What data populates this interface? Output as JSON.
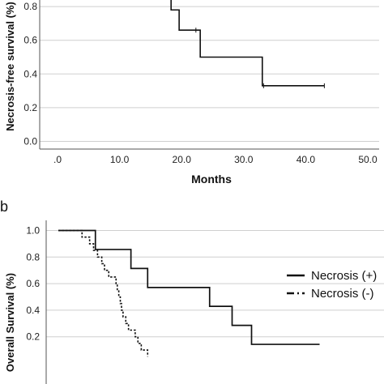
{
  "chart_data": [
    {
      "type": "line",
      "panel_label": "",
      "xlabel": "Months",
      "ylabel": "Necrosis-free survival (%)",
      "xlim": [
        0,
        50
      ],
      "ylim": [
        0,
        1.0
      ],
      "x_ticks": [
        ".0",
        "10.0",
        "20.0",
        "30.0",
        "40.0",
        "50.0"
      ],
      "y_ticks": [
        "0.0",
        "0.2",
        "0.4",
        "0.6",
        "0.8"
      ],
      "grid": "horizontal",
      "series": [
        {
          "style": "solid",
          "steps": [
            [
              0,
              1.0
            ],
            [
              18.3,
              0.78
            ],
            [
              19.6,
              0.66
            ],
            [
              23.0,
              0.5
            ],
            [
              33.0,
              0.33
            ],
            [
              43.0,
              0.33
            ]
          ],
          "censored": [
            [
              22.3,
              0.66
            ],
            [
              33.2,
              0.33
            ],
            [
              43.0,
              0.33
            ]
          ]
        }
      ]
    },
    {
      "type": "line",
      "panel_label": "b",
      "xlabel": "",
      "ylabel": "Overall Survival (%)",
      "xlim": [
        0,
        50
      ],
      "ylim": [
        0,
        1.0
      ],
      "y_ticks": [
        "1.0",
        "0.8",
        "0.6",
        "0.4",
        "0.2"
      ],
      "grid": "horizontal",
      "legend_position": "right",
      "series": [
        {
          "name": "Necrosis (+)",
          "style": "solid",
          "steps": [
            [
              0,
              1.0
            ],
            [
              12.2,
              0.857
            ],
            [
              23.9,
              0.714
            ],
            [
              29.4,
              0.571
            ],
            [
              49.8,
              0.429
            ],
            [
              57.2,
              0.286
            ],
            [
              63.6,
              0.143
            ],
            [
              86.0,
              0.143
            ]
          ]
        },
        {
          "name": "Necrosis (-)",
          "style": "dotted",
          "steps": [
            [
              0,
              1.0
            ],
            [
              7.8,
              0.95
            ],
            [
              10.3,
              0.9
            ],
            [
              11.6,
              0.85
            ],
            [
              12.9,
              0.8
            ],
            [
              14.3,
              0.75
            ],
            [
              15.2,
              0.7
            ],
            [
              16.6,
              0.65
            ],
            [
              19.0,
              0.6
            ],
            [
              19.4,
              0.55
            ],
            [
              19.9,
              0.5
            ],
            [
              20.4,
              0.45
            ],
            [
              20.8,
              0.4
            ],
            [
              21.3,
              0.35
            ],
            [
              22.2,
              0.3
            ],
            [
              23.1,
              0.25
            ],
            [
              25.3,
              0.2
            ],
            [
              26.2,
              0.15
            ],
            [
              27.3,
              0.1
            ],
            [
              29.4,
              0.05
            ]
          ]
        }
      ]
    }
  ]
}
